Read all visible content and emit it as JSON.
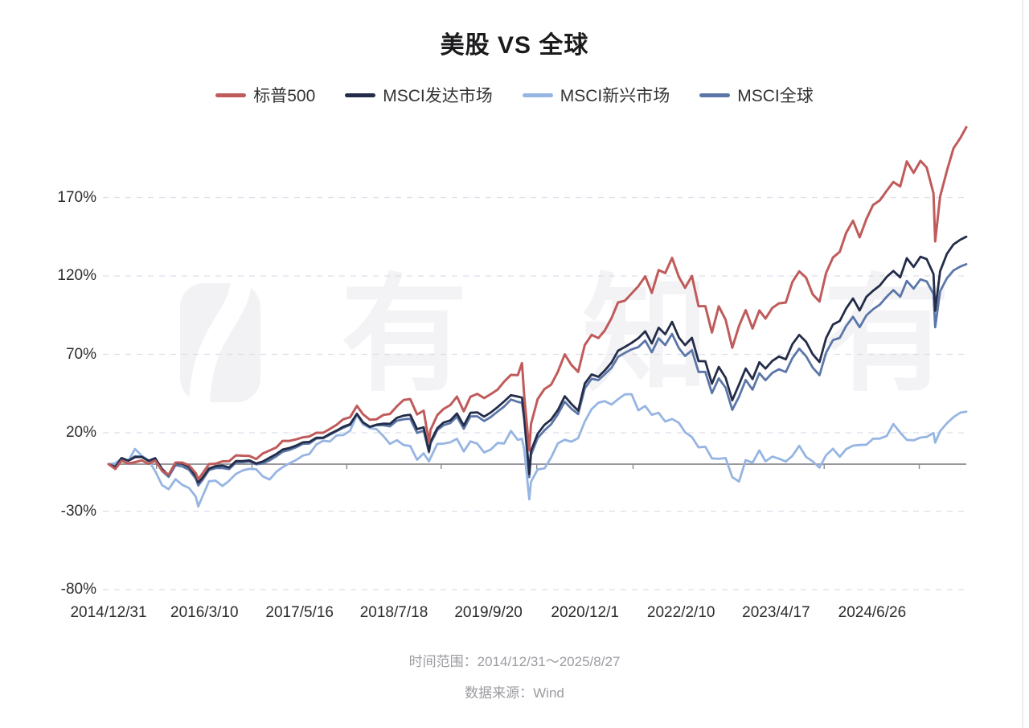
{
  "title": "美股 VS 全球",
  "watermark": {
    "text": "有知有行"
  },
  "footer": {
    "time_range": "时间范围：2014/12/31～2025/8/27",
    "source": "数据来源：Wind"
  },
  "chart_data": {
    "type": "line",
    "title": "美股 VS 全球",
    "legend_position": "top",
    "grid": "dashed-horizontal",
    "ylim": [
      -80,
      220
    ],
    "y_ticks": [
      170,
      120,
      70,
      20,
      -30,
      -80
    ],
    "y_tick_labels": [
      "170%",
      "120%",
      "70%",
      "20%",
      "-30%",
      "-80%"
    ],
    "zero_line": true,
    "x_range": [
      "2014/12/31",
      "2025/8/27"
    ],
    "x_tick_labels": [
      "2014/12/31",
      "2016/3/10",
      "2017/5/16",
      "2018/7/18",
      "2019/9/20",
      "2020/12/1",
      "2022/2/10",
      "2023/4/17",
      "2024/6/26"
    ],
    "unit": "percent_change_since_2014_12_31",
    "x_dates": [
      "2014/12/31",
      "2015/1/31",
      "2015/2/28",
      "2015/3/31",
      "2015/4/30",
      "2015/5/31",
      "2015/6/30",
      "2015/7/31",
      "2015/8/31",
      "2015/9/30",
      "2015/10/31",
      "2015/11/30",
      "2015/12/31",
      "2016/1/31",
      "2016/2/11",
      "2016/2/29",
      "2016/3/31",
      "2016/4/30",
      "2016/5/31",
      "2016/6/30",
      "2016/7/31",
      "2016/8/31",
      "2016/9/30",
      "2016/10/31",
      "2016/11/30",
      "2016/12/31",
      "2017/1/31",
      "2017/2/28",
      "2017/3/31",
      "2017/4/30",
      "2017/5/31",
      "2017/6/30",
      "2017/7/31",
      "2017/8/31",
      "2017/9/30",
      "2017/10/31",
      "2017/11/30",
      "2017/12/31",
      "2018/1/31",
      "2018/2/28",
      "2018/3/31",
      "2018/4/30",
      "2018/5/31",
      "2018/6/30",
      "2018/7/31",
      "2018/8/31",
      "2018/9/30",
      "2018/10/31",
      "2018/11/30",
      "2018/12/24",
      "2018/12/31",
      "2019/1/31",
      "2019/2/28",
      "2019/3/31",
      "2019/4/30",
      "2019/5/31",
      "2019/6/30",
      "2019/7/31",
      "2019/8/31",
      "2019/9/30",
      "2019/10/31",
      "2019/11/30",
      "2019/12/31",
      "2020/1/31",
      "2020/2/19",
      "2020/2/29",
      "2020/3/23",
      "2020/3/31",
      "2020/4/30",
      "2020/5/31",
      "2020/6/30",
      "2020/7/31",
      "2020/8/31",
      "2020/9/30",
      "2020/10/31",
      "2020/11/30",
      "2020/12/31",
      "2021/1/31",
      "2021/2/28",
      "2021/3/31",
      "2021/4/30",
      "2021/5/31",
      "2021/6/30",
      "2021/7/31",
      "2021/8/31",
      "2021/9/30",
      "2021/10/31",
      "2021/11/30",
      "2021/12/31",
      "2022/1/31",
      "2022/2/28",
      "2022/3/31",
      "2022/4/30",
      "2022/5/31",
      "2022/6/30",
      "2022/7/31",
      "2022/8/31",
      "2022/9/30",
      "2022/10/31",
      "2022/11/30",
      "2022/12/31",
      "2023/1/31",
      "2023/2/28",
      "2023/3/31",
      "2023/4/30",
      "2023/5/31",
      "2023/6/30",
      "2023/7/31",
      "2023/8/31",
      "2023/9/30",
      "2023/10/31",
      "2023/11/30",
      "2023/12/31",
      "2024/1/31",
      "2024/2/29",
      "2024/3/31",
      "2024/4/30",
      "2024/5/31",
      "2024/6/30",
      "2024/7/31",
      "2024/8/31",
      "2024/9/30",
      "2024/10/31",
      "2024/11/30",
      "2024/12/31",
      "2025/1/31",
      "2025/2/28",
      "2025/3/31",
      "2025/4/8",
      "2025/4/30",
      "2025/5/31",
      "2025/6/30",
      "2025/7/31",
      "2025/8/27"
    ],
    "series": [
      {
        "name": "标普500",
        "color": "#C05B5B",
        "values": [
          0,
          -3.1,
          2.2,
          0.4,
          1.3,
          2.4,
          0.2,
          2.2,
          -4.2,
          -6.7,
          1.0,
          1.0,
          -0.7,
          -5.8,
          -9.7,
          -6.2,
          0.0,
          0.3,
          1.8,
          1.9,
          5.6,
          5.4,
          5.3,
          3.3,
          6.8,
          8.7,
          10.7,
          14.8,
          14.8,
          15.8,
          17.1,
          17.7,
          20.0,
          20.0,
          22.4,
          25.1,
          28.6,
          29.9,
          37.2,
          31.8,
          28.3,
          28.6,
          31.4,
          32.0,
          36.8,
          40.9,
          41.5,
          31.7,
          34.1,
          14.2,
          21.8,
          31.3,
          35.2,
          37.7,
          43.1,
          33.7,
          42.9,
          44.8,
          42.1,
          44.6,
          47.5,
          52.6,
          56.9,
          56.7,
          64.4,
          43.5,
          8.7,
          25.5,
          41.5,
          47.9,
          50.6,
          58.9,
          70.0,
          63.3,
          58.8,
          75.9,
          82.4,
          80.4,
          85.1,
          93.0,
          103.1,
          104.2,
          108.7,
          113.5,
          119.7,
          109.2,
          123.7,
          121.8,
          131.5,
          119.3,
          112.4,
          120.0,
          100.7,
          100.7,
          83.9,
          100.6,
          92.1,
          74.2,
          88.1,
          98.2,
          86.5,
          98.0,
          92.8,
          99.6,
          102.5,
          103.0,
          116.2,
          122.9,
          118.9,
          108.3,
          103.7,
          121.9,
          131.7,
          135.4,
          147.5,
          155.2,
          144.6,
          156.3,
          165.2,
          168.2,
          174.3,
          179.9,
          177.1,
          193.0,
          185.7,
          193.4,
          189.2,
          172.6,
          142.0,
          170.5,
          187.1,
          201.4,
          207.9,
          214.8
        ]
      },
      {
        "name": "MSCI发达市场",
        "color": "#232C48",
        "values": [
          0,
          -1.9,
          3.9,
          2.2,
          4.4,
          4.6,
          2.1,
          3.8,
          -3.1,
          -7.0,
          0.7,
          0.3,
          -1.9,
          -7.7,
          -11.7,
          -8.9,
          -2.8,
          -1.3,
          -0.9,
          -2.1,
          2.0,
          2.0,
          2.4,
          0.4,
          1.7,
          4.1,
          6.5,
          9.3,
          10.3,
          11.8,
          13.9,
          14.2,
          16.8,
          16.8,
          19.3,
          21.4,
          23.9,
          25.5,
          32.1,
          26.6,
          23.8,
          25.2,
          25.8,
          25.7,
          29.5,
          30.9,
          31.5,
          22.3,
          23.5,
          8.3,
          14.3,
          22.9,
          26.5,
          27.9,
          32.3,
          24.6,
          32.7,
          33.0,
          30.3,
          32.9,
          36.3,
          40.0,
          44.0,
          43.1,
          42.4,
          30.8,
          -6.3,
          8.4,
          19.4,
          25.1,
          28.4,
          34.5,
          43.3,
          38.4,
          34.1,
          51.3,
          57.2,
          55.7,
          59.6,
          64.7,
          72.3,
          74.7,
          77.3,
          80.3,
          84.7,
          77.0,
          87.0,
          82.8,
          90.7,
          80.7,
          75.9,
          80.5,
          65.7,
          65.6,
          51.3,
          62.0,
          55.1,
          40.7,
          50.7,
          61.0,
          54.2,
          65.0,
          60.9,
          65.8,
          68.6,
          66.8,
          76.5,
          82.4,
          78.0,
          70.1,
          65.1,
          80.4,
          89.0,
          91.3,
          99.3,
          105.6,
          98.0,
          106.7,
          110.5,
          113.9,
          119.4,
          123.2,
          119.1,
          131.3,
          125.7,
          132.2,
          130.7,
          121.2,
          97.8,
          122.9,
          134.1,
          140.1,
          143.1,
          145.0
        ]
      },
      {
        "name": "MSCI新兴市场",
        "color": "#96B5E2",
        "values": [
          0,
          0.6,
          3.6,
          2.1,
          9.7,
          5.3,
          2.6,
          -4.5,
          -13.4,
          -16.0,
          -9.6,
          -13.2,
          -15.2,
          -20.7,
          -27.0,
          -21.0,
          -10.9,
          -10.5,
          -13.9,
          -10.6,
          -6.2,
          -4.0,
          -3.0,
          -3.3,
          -7.8,
          -9.8,
          -4.8,
          -1.9,
          0.5,
          2.6,
          5.5,
          6.5,
          12.5,
          14.9,
          14.4,
          18.3,
          18.5,
          21.3,
          31.3,
          25.3,
          22.9,
          22.3,
          17.9,
          12.9,
          15.3,
          12.2,
          11.6,
          2.8,
          6.9,
          1.8,
          4.0,
          12.9,
          13.1,
          13.9,
          16.2,
          8.1,
          14.5,
          13.1,
          7.5,
          9.3,
          13.5,
          13.2,
          21.2,
          15.5,
          16.1,
          9.4,
          -22.4,
          -11.3,
          -3.4,
          -2.7,
          4.2,
          13.3,
          15.6,
          14.3,
          16.6,
          27.2,
          35.1,
          39.2,
          40.2,
          38.0,
          41.4,
          44.5,
          44.6,
          34.3,
          37.1,
          31.5,
          32.7,
          27.2,
          28.8,
          26.3,
          20.3,
          17.3,
          10.7,
          11.1,
          3.7,
          3.4,
          3.9,
          -8.3,
          -11.1,
          2.6,
          0.9,
          8.8,
          1.8,
          4.8,
          3.5,
          1.7,
          5.3,
          11.7,
          4.6,
          1.8,
          -2.2,
          5.7,
          9.8,
          4.7,
          9.6,
          11.8,
          12.2,
          12.4,
          16.2,
          16.3,
          18.0,
          25.6,
          20.1,
          15.5,
          15.2,
          17.0,
          17.4,
          19.9,
          13.7,
          21.0,
          26.1,
          30.0,
          32.8,
          33.5
        ]
      },
      {
        "name": "MSCI全球",
        "color": "#5B76A8",
        "values": [
          0,
          -1.6,
          3.9,
          2.2,
          5.1,
          4.7,
          2.2,
          2.8,
          -4.4,
          -8.1,
          -0.6,
          -1.4,
          -3.6,
          -9.3,
          -13.6,
          -10.4,
          -3.8,
          -2.5,
          -2.5,
          -3.2,
          1.0,
          1.3,
          1.7,
          -0.1,
          0.5,
          2.4,
          5.1,
          7.9,
          9.1,
          10.7,
          12.9,
          13.2,
          16.3,
          16.6,
          18.7,
          21.0,
          23.2,
          25.0,
          32.0,
          26.4,
          23.7,
          24.8,
          24.8,
          24.1,
          27.7,
          28.6,
          29.0,
          19.9,
          21.4,
          7.5,
          13.0,
          21.7,
          24.8,
          26.2,
          30.3,
          22.5,
          30.4,
          30.5,
          27.5,
          30.0,
          33.5,
          36.7,
          41.2,
          39.7,
          39.1,
          28.1,
          -8.3,
          5.9,
          16.6,
          21.6,
          25.4,
          31.9,
          39.8,
          35.4,
          31.9,
          48.3,
          54.4,
          53.6,
          57.2,
          61.4,
          68.4,
          70.9,
          73.2,
          74.6,
          78.8,
          71.3,
          80.2,
          75.9,
          83.0,
          73.9,
          69.0,
          72.6,
          58.8,
          58.8,
          45.3,
          54.7,
          48.7,
          34.6,
          43.0,
          53.7,
          47.5,
          58.0,
          53.5,
          58.2,
          60.5,
          58.7,
          67.6,
          73.6,
          68.8,
          61.6,
          56.7,
          71.1,
          79.1,
          80.5,
          88.1,
          93.9,
          87.3,
          94.9,
          98.7,
          101.7,
          106.7,
          111.0,
          106.7,
          116.8,
          111.9,
          117.8,
          116.5,
          108.5,
          87.3,
          110.2,
          118.5,
          123.5,
          126.0,
          127.5
        ]
      }
    ]
  }
}
